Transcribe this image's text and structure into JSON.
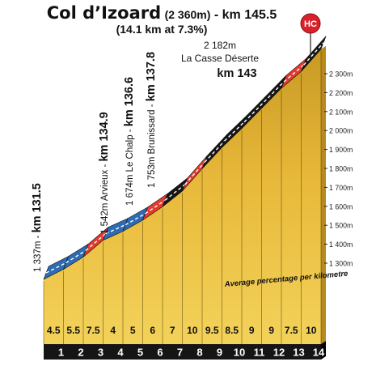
{
  "title": {
    "name": "Col d’Izoard",
    "elevation": "(2 360m)",
    "km": "- km 145.5",
    "subtitle": "(14.1 km at 7.3%)"
  },
  "badge": {
    "label": "HC",
    "color": "#d8222b"
  },
  "colors": {
    "fill_light": "#f3d25a",
    "fill_dark": "#c99a24",
    "side": "#b8891d",
    "blue": "#2e6bb5",
    "red": "#e23a2f",
    "black": "#161616",
    "base": "#151515"
  },
  "chart_data": {
    "type": "area",
    "title": "Col d’Izoard (2 360m) - km 145.5 (14.1 km at 7.3%)",
    "x_unit": "km",
    "x_ticks": [
      "1",
      "2",
      "3",
      "4",
      "5",
      "6",
      "7",
      "8",
      "9",
      "10",
      "11",
      "12",
      "13",
      "14"
    ],
    "segment_gradients": [
      4.5,
      5.5,
      7.5,
      4,
      5,
      6,
      7,
      10,
      9.5,
      8.5,
      9,
      9,
      7.5,
      10
    ],
    "segment_gradient_labels": [
      "4.5",
      "5.5",
      "7.5",
      "4",
      "5",
      "6",
      "7",
      "10",
      "9.5",
      "8.5",
      "9",
      "9",
      "7.5",
      "10"
    ],
    "segment_colors": [
      "blue",
      "blue",
      "red",
      "blue",
      "blue",
      "red",
      "black",
      "red",
      "black",
      "black",
      "black",
      "black",
      "red",
      "black"
    ],
    "start_elevation_m": 1337,
    "y_ticks": [
      "2 300m",
      "2 200m",
      "2 100m",
      "2 000m",
      "1 900m",
      "1 800m",
      "1 700m",
      "1 600m",
      "1 500m",
      "1 400m",
      "1 300m"
    ],
    "y_tick_values": [
      2300,
      2200,
      2100,
      2000,
      1900,
      1800,
      1700,
      1600,
      1500,
      1400,
      1300
    ],
    "ylim": [
      1300,
      2360
    ],
    "xlabel_note": "Average percentage per kilometre",
    "annotations": [
      {
        "km": 0,
        "elevation": "1 337m -",
        "name": "",
        "km_label": "km 131.5"
      },
      {
        "km": 3.4,
        "elevation": "1 542m",
        "name": "Arvieux -",
        "km_label": "km 134.9"
      },
      {
        "km": 5.1,
        "elevation": "1 674m",
        "name": "Le Chalp -",
        "km_label": "km 136.6"
      },
      {
        "km": 6.3,
        "elevation": "1 753m",
        "name": "Brunissard -",
        "km_label": "km 137.8"
      },
      {
        "km": 11.5,
        "elevation": "2 182m",
        "name": "La Casse Déserte",
        "km_label": "km 143"
      }
    ]
  }
}
